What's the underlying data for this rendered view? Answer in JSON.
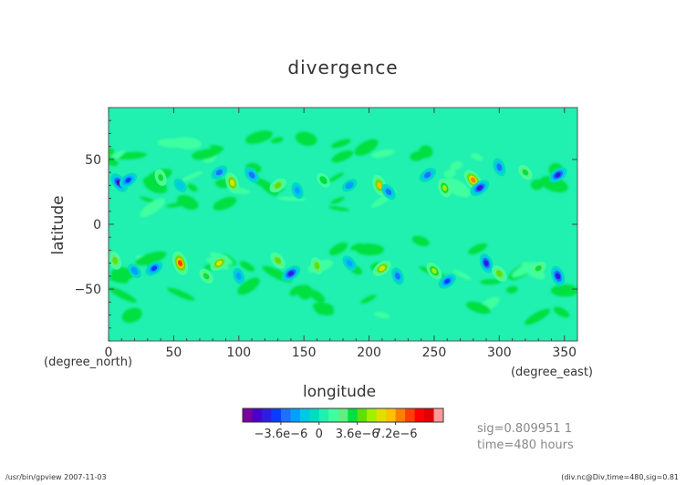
{
  "chart_data": {
    "type": "heatmap",
    "title": "divergence",
    "xlabel": "longitude",
    "ylabel": "latitude",
    "x_unit": "(degree_east)",
    "y_unit": "(degree_north)",
    "xlim": [
      0,
      360
    ],
    "ylim": [
      -90,
      90
    ],
    "x_ticks": [
      "0",
      "50",
      "100",
      "150",
      "200",
      "250",
      "300",
      "350"
    ],
    "y_ticks": [
      "50",
      "0",
      "−50"
    ],
    "background_value": 0,
    "features": [
      {
        "lon": 8,
        "lat": 32,
        "value": -6e-06
      },
      {
        "lon": 15,
        "lat": 34,
        "value": -4.5e-06
      },
      {
        "lon": 40,
        "lat": 36,
        "value": 3e-06
      },
      {
        "lon": 55,
        "lat": 30,
        "value": -2e-06
      },
      {
        "lon": 85,
        "lat": 40,
        "value": -3.5e-06
      },
      {
        "lon": 95,
        "lat": 32,
        "value": 5.5e-06
      },
      {
        "lon": 110,
        "lat": 38,
        "value": -4e-06
      },
      {
        "lon": 130,
        "lat": 30,
        "value": 4e-06
      },
      {
        "lon": 145,
        "lat": 26,
        "value": -3e-06
      },
      {
        "lon": 165,
        "lat": 34,
        "value": 2.5e-06
      },
      {
        "lon": 185,
        "lat": 30,
        "value": -2.5e-06
      },
      {
        "lon": 208,
        "lat": 30,
        "value": 6e-06
      },
      {
        "lon": 215,
        "lat": 25,
        "value": -3.5e-06
      },
      {
        "lon": 245,
        "lat": 38,
        "value": -4e-06
      },
      {
        "lon": 258,
        "lat": 28,
        "value": 4.5e-06
      },
      {
        "lon": 280,
        "lat": 34,
        "value": 7.5e-06
      },
      {
        "lon": 285,
        "lat": 28,
        "value": -5.5e-06
      },
      {
        "lon": 300,
        "lat": 44,
        "value": -4e-06
      },
      {
        "lon": 320,
        "lat": 40,
        "value": 3e-06
      },
      {
        "lon": 345,
        "lat": 38,
        "value": -5e-06
      },
      {
        "lon": 5,
        "lat": -28,
        "value": 4e-06
      },
      {
        "lon": 20,
        "lat": -36,
        "value": -2.5e-06
      },
      {
        "lon": 35,
        "lat": -34,
        "value": -4.5e-06
      },
      {
        "lon": 55,
        "lat": -30,
        "value": 8e-06
      },
      {
        "lon": 75,
        "lat": -40,
        "value": 3e-06
      },
      {
        "lon": 85,
        "lat": -30,
        "value": 5e-06
      },
      {
        "lon": 100,
        "lat": -40,
        "value": -3e-06
      },
      {
        "lon": 130,
        "lat": -28,
        "value": 4e-06
      },
      {
        "lon": 140,
        "lat": -38,
        "value": -5.5e-06
      },
      {
        "lon": 160,
        "lat": -32,
        "value": 3.5e-06
      },
      {
        "lon": 185,
        "lat": -30,
        "value": -3e-06
      },
      {
        "lon": 210,
        "lat": -34,
        "value": 5e-06
      },
      {
        "lon": 222,
        "lat": -40,
        "value": -3.5e-06
      },
      {
        "lon": 250,
        "lat": -36,
        "value": 4.5e-06
      },
      {
        "lon": 260,
        "lat": -44,
        "value": -4.5e-06
      },
      {
        "lon": 290,
        "lat": -30,
        "value": -5e-06
      },
      {
        "lon": 300,
        "lat": -38,
        "value": 4e-06
      },
      {
        "lon": 330,
        "lat": -34,
        "value": 3e-06
      },
      {
        "lon": 345,
        "lat": -40,
        "value": -5.5e-06
      }
    ],
    "colorbar": {
      "colors": [
        "#7a00a0",
        "#4b00c8",
        "#2c1ee0",
        "#0a3cff",
        "#1e70ff",
        "#00a0ff",
        "#00c8e8",
        "#00dcc0",
        "#20f0b0",
        "#40ffa0",
        "#60f080",
        "#00e040",
        "#60e000",
        "#a0f000",
        "#e0e000",
        "#ffc000",
        "#ff8000",
        "#ff4000",
        "#ff0000",
        "#e00000",
        "#ff9a9a"
      ],
      "labels": [
        "−3.6e−6",
        "0",
        "3.6e−6",
        "7.2e−6"
      ],
      "label_values": [
        -3.6e-06,
        0,
        3.6e-06,
        7.2e-06
      ]
    }
  },
  "annotations": {
    "sig": "sig=0.809951 1",
    "time": "time=480 hours",
    "footer_left": "/usr/bin/gpview  2007-11-03",
    "footer_right": "(div.nc@Div,time=480,sig=0.81"
  }
}
